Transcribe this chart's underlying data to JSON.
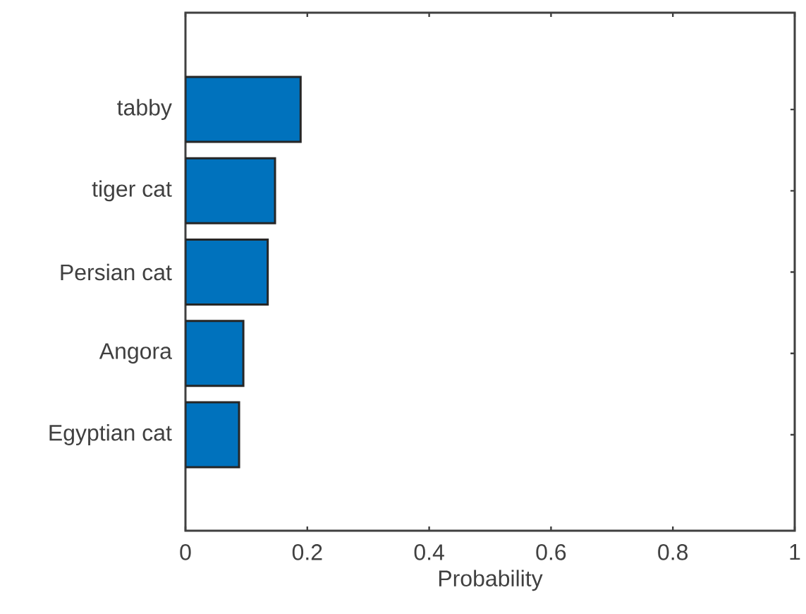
{
  "chart_data": {
    "type": "bar",
    "orientation": "horizontal",
    "categories": [
      "tabby",
      "tiger cat",
      "Persian cat",
      "Angora",
      "Egyptian cat"
    ],
    "values": [
      0.189,
      0.147,
      0.135,
      0.095,
      0.088
    ],
    "color": "#0072bd",
    "xlabel": "Probability",
    "xlim": [
      0,
      1
    ],
    "xticks": [
      0,
      0.2,
      0.4,
      0.6,
      0.8,
      1
    ],
    "grid": false
  }
}
